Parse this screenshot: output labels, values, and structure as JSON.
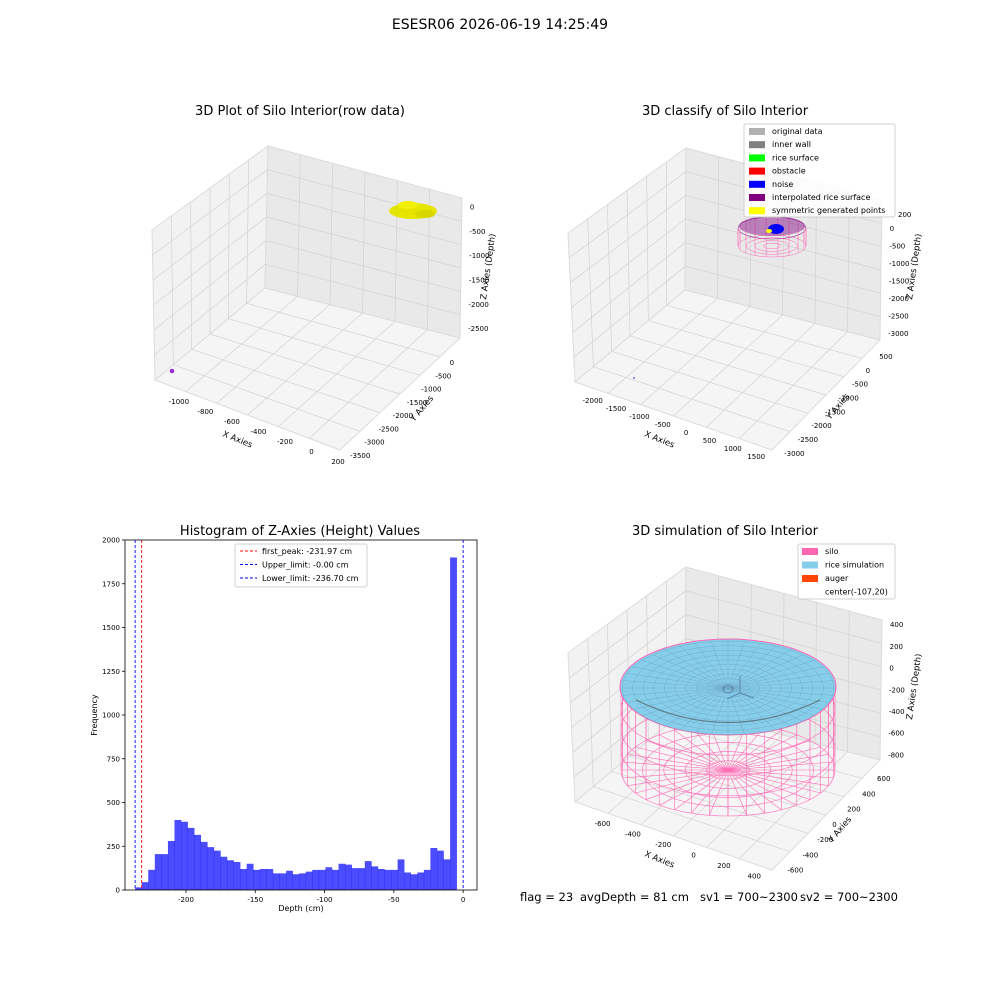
{
  "figure_title": "ESESR06 2026-06-19 14:25:49",
  "panels": {
    "raw": {
      "title": "3D Plot of Silo Interior(row data)",
      "xlabel": "X Axies",
      "ylabel": "Y Axies",
      "zlabel": "Z Axies (Depth)",
      "xticks": [
        "-1000",
        "-800",
        "-600",
        "-400",
        "-200",
        "0",
        "200"
      ],
      "yticks": [
        "0",
        "-500",
        "-1000",
        "-1500",
        "-2000",
        "-2500",
        "-3000",
        "-3500"
      ],
      "zticks": [
        "0",
        "-500",
        "-1000",
        "-1500",
        "-2000",
        "-2500"
      ]
    },
    "classify": {
      "title": "3D classify of Silo Interior",
      "xlabel": "X Axies",
      "ylabel": "Y Axies",
      "zlabel": "Z Axies (Depth)",
      "xticks": [
        "-2000",
        "-1500",
        "-1000",
        "-500",
        "0",
        "500",
        "1000",
        "1500"
      ],
      "yticks": [
        "500",
        "0",
        "-500",
        "-1000",
        "-1500",
        "-2000",
        "-2500",
        "-3000"
      ],
      "zticks": [
        "0",
        "-500",
        "-1000",
        "-1500",
        "-2000",
        "-2500",
        "-3000"
      ],
      "zticks_partial": "200",
      "legend": [
        {
          "label": "original data",
          "color": "#b0b0b0"
        },
        {
          "label": "inner wall",
          "color": "#808080"
        },
        {
          "label": "rice surface",
          "color": "#00ff00"
        },
        {
          "label": "obstacle",
          "color": "#ff0000"
        },
        {
          "label": "noise",
          "color": "#0000ff"
        },
        {
          "label": "interpolated rice surface",
          "color": "#800080"
        },
        {
          "label": "symmetric generated points",
          "color": "#ffff00"
        }
      ]
    },
    "simulation": {
      "title": "3D simulation of Silo Interior",
      "xlabel": "X Axies",
      "ylabel": "Y Axies",
      "zlabel": "Z Axies (Depth)",
      "xticks": [
        "-600",
        "-400",
        "-200",
        "0",
        "200",
        "400"
      ],
      "yticks": [
        "600",
        "400",
        "200",
        "0",
        "-200",
        "-400",
        "-600"
      ],
      "zticks": [
        "400",
        "200",
        "0",
        "-200",
        "-400",
        "-600",
        "-800"
      ],
      "legend": [
        {
          "label": "silo",
          "color": "#ff69b4"
        },
        {
          "label": "rice simulation",
          "color": "#87ceeb"
        },
        {
          "label": "auger",
          "color": "#ff4500"
        },
        {
          "label": "center(-107,20)",
          "color": ""
        }
      ]
    }
  },
  "status": {
    "flag": "flag = 23",
    "avg_depth": "avgDepth = 81 cm",
    "sv1": "sv1 = 700~2300",
    "sv2": "sv2 = 700~2300"
  },
  "chart_data": [
    {
      "type": "scatter",
      "title": "3D Plot of Silo Interior(row data)",
      "xlabel": "X Axies",
      "ylabel": "Y Axies",
      "zlabel": "Z Axies (Depth)",
      "xlim": [
        -1100,
        200
      ],
      "ylim": [
        -3500,
        0
      ],
      "zlim": [
        -2700,
        0
      ],
      "series": [
        {
          "color": "#e5e500",
          "cluster_center": {
            "x": 150,
            "y": -3300,
            "z": -150
          }
        },
        {
          "color": "#9b30d0",
          "point": {
            "x": -1050,
            "y": -50,
            "z": -2600
          }
        }
      ]
    },
    {
      "type": "scatter",
      "title": "3D classify of Silo Interior",
      "xlabel": "X Axies",
      "ylabel": "Y Axies",
      "zlabel": "Z Axies (Depth)",
      "xlim": [
        -2200,
        1700
      ],
      "ylim": [
        -3200,
        700
      ],
      "zlim": [
        -3300,
        200
      ],
      "legend_position": "top-right"
    },
    {
      "type": "bar",
      "title": "Histogram of Z-Axies (Height) Values",
      "xlabel": "Depth (cm)",
      "ylabel": "Frequency",
      "xlim": [
        -244,
        10
      ],
      "ylim": [
        0,
        2000
      ],
      "xticks": [
        -200,
        -150,
        -100,
        -50,
        0
      ],
      "yticks": [
        0,
        250,
        500,
        750,
        1000,
        1250,
        1500,
        1750,
        2000
      ],
      "bin_start": -236.7,
      "bin_width": 4.735,
      "values": [
        15,
        45,
        115,
        205,
        205,
        280,
        400,
        390,
        355,
        315,
        275,
        245,
        225,
        190,
        170,
        160,
        120,
        150,
        115,
        120,
        120,
        95,
        95,
        110,
        90,
        95,
        105,
        115,
        115,
        130,
        115,
        150,
        145,
        125,
        125,
        165,
        135,
        120,
        115,
        115,
        175,
        100,
        90,
        100,
        115,
        240,
        225,
        175,
        1900
      ],
      "color": "#0000ff",
      "vlines": [
        {
          "label": "first_peak: -231.97 cm",
          "x": -231.97,
          "color": "#ff0000"
        },
        {
          "label": "Upper_limit: -0.00 cm",
          "x": 0,
          "color": "#0000ff"
        },
        {
          "label": "Lower_limit: -236.70 cm",
          "x": -236.7,
          "color": "#0000ff"
        }
      ],
      "legend_position": "top-center"
    },
    {
      "type": "scatter",
      "title": "3D simulation of Silo Interior",
      "xlabel": "X Axies",
      "ylabel": "Y Axies",
      "zlabel": "Z Axies (Depth)",
      "xlim": [
        -700,
        500
      ],
      "ylim": [
        -650,
        650
      ],
      "zlim": [
        -900,
        450
      ],
      "legend_position": "top-right"
    }
  ]
}
